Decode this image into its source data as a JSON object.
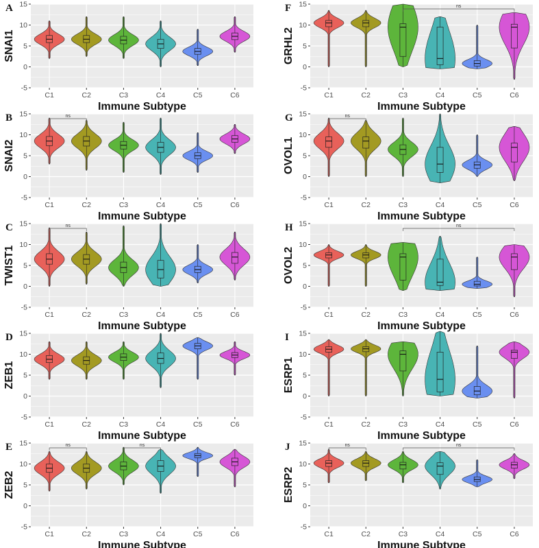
{
  "colors": {
    "C1": "#e8615a",
    "C2": "#a39a22",
    "C3": "#5db53b",
    "C4": "#48b4b4",
    "C5": "#6a8ff0",
    "C6": "#d656d6",
    "panel_bg": "#ebebeb",
    "grid": "#ffffff"
  },
  "chart_data": [
    {
      "type": "violin",
      "label": "A",
      "title": "",
      "ylabel": "SNAI1",
      "xlabel": "Immune Subtype",
      "categories": [
        "C1",
        "C2",
        "C3",
        "C4",
        "C5",
        "C6"
      ],
      "ylim": [
        -5,
        15
      ],
      "yticks": [
        -5,
        0,
        5,
        10,
        15
      ],
      "medians": [
        6.6,
        6.6,
        6.4,
        5.5,
        3.7,
        7.3
      ],
      "q1": [
        5.8,
        5.8,
        5.5,
        4.4,
        3.0,
        6.5
      ],
      "q3": [
        7.5,
        7.5,
        7.3,
        6.6,
        4.4,
        8.1
      ],
      "min": [
        2.0,
        2.5,
        2.0,
        0.0,
        0.3,
        3.5
      ],
      "max": [
        11.0,
        12.0,
        12.0,
        11.0,
        9.0,
        12.0
      ],
      "comparisons": []
    },
    {
      "type": "violin",
      "label": "B",
      "title": "",
      "ylabel": "SNAI2",
      "xlabel": "Immune Subtype",
      "categories": [
        "C1",
        "C2",
        "C3",
        "C4",
        "C5",
        "C6"
      ],
      "ylim": [
        -5,
        15
      ],
      "yticks": [
        -5,
        0,
        5,
        10,
        15
      ],
      "medians": [
        8.5,
        8.5,
        7.5,
        7.0,
        5.0,
        9.0
      ],
      "q1": [
        7.4,
        7.3,
        6.6,
        5.8,
        4.3,
        8.2
      ],
      "q3": [
        9.6,
        9.6,
        8.4,
        8.2,
        5.7,
        9.8
      ],
      "min": [
        3.0,
        1.5,
        1.0,
        0.5,
        1.0,
        5.5
      ],
      "max": [
        14.0,
        13.5,
        13.0,
        14.0,
        10.5,
        12.5
      ],
      "comparisons": [
        {
          "from": "C1",
          "to": "C2",
          "label": "ns"
        }
      ]
    },
    {
      "type": "violin",
      "label": "C",
      "title": "",
      "ylabel": "TWIST1",
      "xlabel": "Immune Subtype",
      "categories": [
        "C1",
        "C2",
        "C3",
        "C4",
        "C5",
        "C6"
      ],
      "ylim": [
        -5,
        15
      ],
      "yticks": [
        -5,
        0,
        5,
        10,
        15
      ],
      "medians": [
        6.5,
        6.5,
        4.5,
        4.0,
        4.0,
        7.0
      ],
      "q1": [
        5.3,
        5.3,
        3.3,
        2.0,
        3.3,
        5.5
      ],
      "q3": [
        7.8,
        7.6,
        5.8,
        6.2,
        4.8,
        8.1
      ],
      "min": [
        0.0,
        0.5,
        0.0,
        0.0,
        0.8,
        1.5
      ],
      "max": [
        14.0,
        13.0,
        14.5,
        15.0,
        10.0,
        13.0
      ],
      "comparisons": [
        {
          "from": "C1",
          "to": "C2",
          "label": "ns"
        }
      ]
    },
    {
      "type": "violin",
      "label": "D",
      "title": "",
      "ylabel": "ZEB1",
      "xlabel": "Immune Subtype",
      "categories": [
        "C1",
        "C2",
        "C3",
        "C4",
        "C5",
        "C6"
      ],
      "ylim": [
        -5,
        15
      ],
      "yticks": [
        -5,
        0,
        5,
        10,
        15
      ],
      "medians": [
        8.8,
        8.5,
        9.3,
        9.0,
        12.0,
        9.8
      ],
      "q1": [
        8.0,
        7.6,
        8.5,
        7.8,
        11.3,
        9.2
      ],
      "q3": [
        9.7,
        9.4,
        10.1,
        10.3,
        12.6,
        10.4
      ],
      "min": [
        4.0,
        4.0,
        4.0,
        2.0,
        4.0,
        5.0
      ],
      "max": [
        13.0,
        13.0,
        13.0,
        15.0,
        14.0,
        13.0
      ],
      "comparisons": []
    },
    {
      "type": "violin",
      "label": "E",
      "title": "",
      "ylabel": "ZEB2",
      "xlabel": "Immune Subtype",
      "categories": [
        "C1",
        "C2",
        "C3",
        "C4",
        "C5",
        "C6"
      ],
      "ylim": [
        -5,
        15
      ],
      "yticks": [
        -5,
        0,
        5,
        10,
        15
      ],
      "medians": [
        9.0,
        9.0,
        9.5,
        9.5,
        12.0,
        10.5
      ],
      "q1": [
        8.0,
        8.0,
        8.6,
        8.2,
        11.5,
        9.6
      ],
      "q3": [
        10.0,
        10.0,
        10.5,
        10.8,
        12.5,
        11.4
      ],
      "min": [
        3.5,
        4.0,
        5.0,
        3.0,
        7.0,
        4.5
      ],
      "max": [
        13.0,
        13.0,
        14.0,
        13.5,
        14.0,
        13.5
      ],
      "comparisons": [
        {
          "from": "C1",
          "to": "C2",
          "label": "ns"
        },
        {
          "from": "C3",
          "to": "C4",
          "label": "ns"
        }
      ]
    },
    {
      "type": "violin",
      "label": "F",
      "title": "",
      "ylabel": "GRHL2",
      "xlabel": "Immune Subtype",
      "categories": [
        "C1",
        "C2",
        "C3",
        "C4",
        "C5",
        "C6"
      ],
      "ylim": [
        -5,
        15
      ],
      "yticks": [
        -5,
        0,
        5,
        10,
        15
      ],
      "medians": [
        10.5,
        10.5,
        9.5,
        2.0,
        0.8,
        9.5
      ],
      "q1": [
        9.6,
        9.6,
        2.5,
        0.5,
        0.2,
        4.5
      ],
      "q3": [
        11.1,
        11.1,
        10.3,
        9.5,
        1.5,
        10.2
      ],
      "min": [
        0.0,
        0.0,
        0.0,
        -0.5,
        -0.5,
        -3.0
      ],
      "max": [
        13.5,
        13.5,
        15.0,
        12.0,
        10.0,
        13.0
      ],
      "comparisons": [
        {
          "from": "C3",
          "to": "C6",
          "label": "ns"
        }
      ]
    },
    {
      "type": "violin",
      "label": "G",
      "title": "",
      "ylabel": "OVOL1",
      "xlabel": "Immune Subtype",
      "categories": [
        "C1",
        "C2",
        "C3",
        "C4",
        "C5",
        "C6"
      ],
      "ylim": [
        -5,
        15
      ],
      "yticks": [
        -5,
        0,
        5,
        10,
        15
      ],
      "medians": [
        8.5,
        8.5,
        6.5,
        3.0,
        2.8,
        7.0
      ],
      "q1": [
        7.0,
        6.8,
        5.3,
        1.0,
        2.0,
        3.5
      ],
      "q3": [
        9.5,
        9.5,
        7.6,
        7.0,
        3.5,
        8.0
      ],
      "min": [
        0.0,
        0.0,
        0.0,
        -1.5,
        0.0,
        -1.0
      ],
      "max": [
        14.0,
        13.5,
        14.0,
        15.0,
        10.0,
        12.0
      ],
      "comparisons": [
        {
          "from": "C1",
          "to": "C2",
          "label": "ns"
        }
      ]
    },
    {
      "type": "violin",
      "label": "H",
      "title": "",
      "ylabel": "OVOL2",
      "xlabel": "Immune Subtype",
      "categories": [
        "C1",
        "C2",
        "C3",
        "C4",
        "C5",
        "C6"
      ],
      "ylim": [
        -5,
        15
      ],
      "yticks": [
        -5,
        0,
        5,
        10,
        15
      ],
      "medians": [
        7.5,
        7.5,
        7.0,
        1.0,
        0.5,
        7.0
      ],
      "q1": [
        6.8,
        6.8,
        1.5,
        0.2,
        0.1,
        4.0
      ],
      "q3": [
        8.0,
        8.0,
        7.8,
        6.5,
        1.2,
        7.8
      ],
      "min": [
        0.0,
        0.0,
        -1.0,
        -1.0,
        -0.5,
        -2.5
      ],
      "max": [
        10.0,
        10.0,
        10.5,
        12.0,
        7.0,
        10.0
      ],
      "comparisons": [
        {
          "from": "C3",
          "to": "C6",
          "label": "ns"
        }
      ]
    },
    {
      "type": "violin",
      "label": "I",
      "title": "",
      "ylabel": "ESRP1",
      "xlabel": "Immune Subtype",
      "categories": [
        "C1",
        "C2",
        "C3",
        "C4",
        "C5",
        "C6"
      ],
      "ylim": [
        -5,
        15
      ],
      "yticks": [
        -5,
        0,
        5,
        10,
        15
      ],
      "medians": [
        11.2,
        11.3,
        10.0,
        4.0,
        1.2,
        10.5
      ],
      "q1": [
        10.5,
        10.6,
        6.0,
        1.0,
        0.3,
        9.0
      ],
      "q3": [
        11.8,
        11.8,
        10.8,
        10.5,
        2.3,
        11.0
      ],
      "min": [
        0.0,
        0.0,
        0.0,
        0.0,
        -0.5,
        -0.5
      ],
      "max": [
        13.5,
        13.5,
        13.0,
        15.5,
        12.0,
        13.0
      ],
      "comparisons": []
    },
    {
      "type": "violin",
      "label": "J",
      "title": "",
      "ylabel": "ESRP2",
      "xlabel": "Immune Subtype",
      "categories": [
        "C1",
        "C2",
        "C3",
        "C4",
        "C5",
        "C6"
      ],
      "ylim": [
        -5,
        15
      ],
      "yticks": [
        -5,
        0,
        5,
        10,
        15
      ],
      "medians": [
        10.2,
        10.2,
        9.8,
        9.5,
        6.3,
        9.8
      ],
      "q1": [
        9.4,
        9.4,
        8.8,
        7.5,
        5.8,
        9.0
      ],
      "q3": [
        10.8,
        10.8,
        10.4,
        10.3,
        6.9,
        10.4
      ],
      "min": [
        5.5,
        6.0,
        5.5,
        4.0,
        4.5,
        6.5
      ],
      "max": [
        13.5,
        13.0,
        13.0,
        13.0,
        11.0,
        12.5
      ],
      "comparisons": [
        {
          "from": "C1",
          "to": "C2",
          "label": "ns"
        },
        {
          "from": "C3",
          "to": "C6",
          "label": "ns"
        }
      ]
    }
  ]
}
